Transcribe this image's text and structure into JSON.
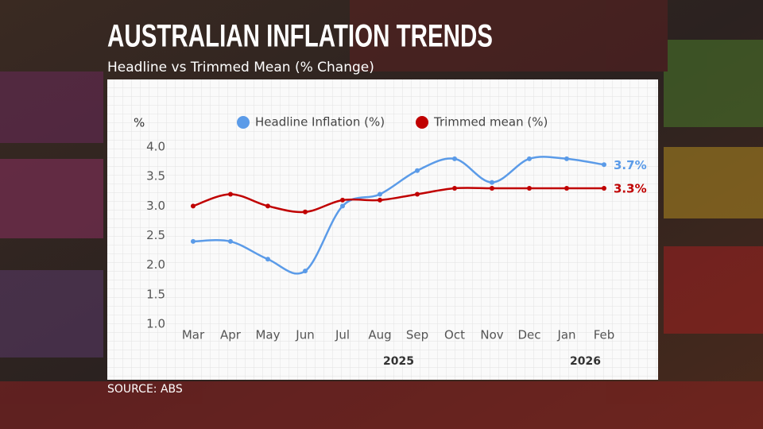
{
  "chart_data": {
    "type": "line",
    "title": "AUSTRALIAN INFLATION TRENDS",
    "subtitle": "Headline vs Trimmed Mean (% Change)",
    "y_label": "%",
    "source": "SOURCE: ABS",
    "categories": [
      "Mar",
      "Apr",
      "May",
      "Jun",
      "Jul",
      "Aug",
      "Sep",
      "Oct",
      "Nov",
      "Dec",
      "Jan",
      "Feb"
    ],
    "year_labels": [
      "2025",
      "2026"
    ],
    "series": [
      {
        "name": "Headline Inflation (%)",
        "color": "#5b9be8",
        "values": [
          2.4,
          2.4,
          2.1,
          1.9,
          3.0,
          3.2,
          3.6,
          3.8,
          3.4,
          3.8,
          3.8,
          3.7
        ],
        "end_label": "3.7%"
      },
      {
        "name": "Trimmed mean (%)",
        "color": "#c00000",
        "values": [
          3.0,
          3.2,
          3.0,
          2.9,
          3.1,
          3.1,
          3.2,
          3.3,
          3.3,
          3.3,
          3.3,
          3.3
        ],
        "end_label": "3.3%"
      }
    ],
    "ylim": [
      1.0,
      4.0
    ],
    "yticks": [
      {
        "value": 1,
        "label": "1.0"
      },
      1.5,
      {
        "value": 2,
        "label": "2.0"
      },
      2.5,
      {
        "value": 3,
        "label": "3.0"
      },
      3.5,
      {
        "value": 4,
        "label": "4.0"
      }
    ]
  }
}
